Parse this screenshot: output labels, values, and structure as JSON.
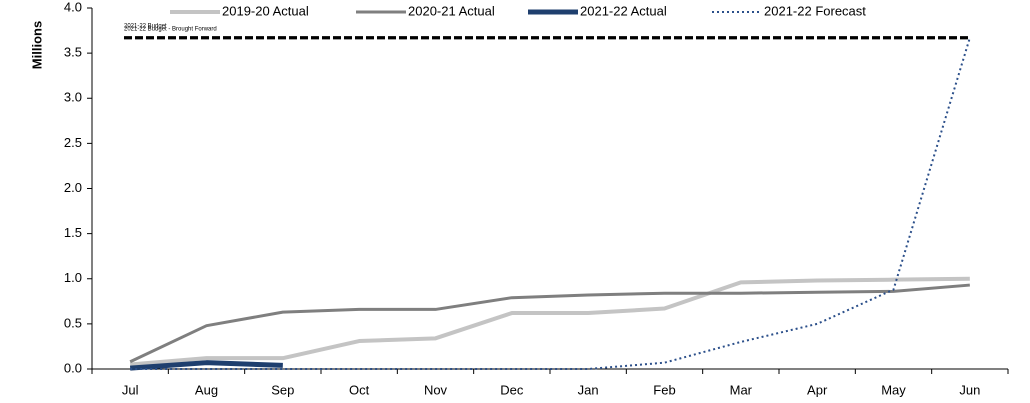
{
  "chart_data": {
    "type": "line",
    "y_label": "Millions",
    "categories": [
      "Jul",
      "Aug",
      "Sep",
      "Oct",
      "Nov",
      "Dec",
      "Jan",
      "Feb",
      "Mar",
      "Apr",
      "May",
      "Jun"
    ],
    "series": [
      {
        "name": "2019-20 Actual",
        "color": "#c4c4c4",
        "style": "solid",
        "width": 4,
        "values": [
          0.05,
          0.12,
          0.12,
          0.31,
          0.34,
          0.62,
          0.62,
          0.67,
          0.96,
          0.98,
          0.99,
          1.0
        ]
      },
      {
        "name": "2020-21 Actual",
        "color": "#7f7f7f",
        "style": "solid",
        "width": 3,
        "values": [
          0.08,
          0.48,
          0.63,
          0.66,
          0.66,
          0.79,
          0.82,
          0.84,
          0.84,
          0.85,
          0.86,
          0.93
        ]
      },
      {
        "name": "2021-22 Actual",
        "color": "#1f3f6e",
        "style": "solid",
        "width": 5,
        "values": [
          0.01,
          0.07,
          0.04,
          null,
          null,
          null,
          null,
          null,
          null,
          null,
          null,
          null
        ]
      },
      {
        "name": "2021-22 Forecast",
        "color": "#2b4f8a",
        "style": "dotted",
        "width": 2,
        "values": [
          0,
          0,
          0,
          0,
          0,
          0,
          0,
          0.07,
          0.3,
          0.5,
          0.88,
          3.67
        ]
      }
    ],
    "reference_lines": [
      {
        "label": "2021-22 Budget",
        "value": 3.67,
        "color": "#000000"
      },
      {
        "label": "2021-22 Budget - Brought Forward",
        "value": 3.67,
        "color": "#000000"
      }
    ],
    "ylim": [
      0,
      4
    ],
    "yticks": [
      {
        "value": 0,
        "label": "0.0"
      },
      0.5,
      {
        "value": 1,
        "label": "1.0"
      },
      1.5,
      {
        "value": 2,
        "label": "2.0"
      },
      2.5,
      {
        "value": 3,
        "label": "3.0"
      },
      3.5,
      {
        "value": 4,
        "label": "4.0"
      }
    ],
    "grid": false,
    "legend": "top"
  }
}
